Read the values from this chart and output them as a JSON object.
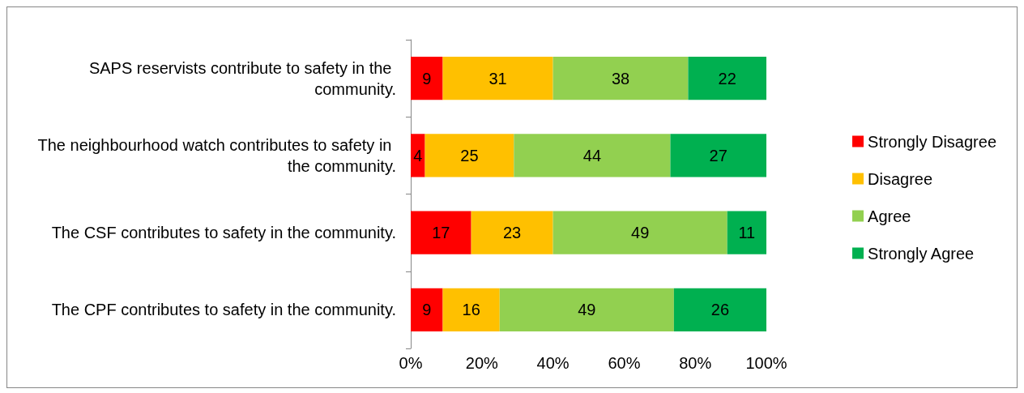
{
  "chart_data": {
    "type": "bar",
    "orientation": "horizontal",
    "stacked": true,
    "categories": [
      "SAPS reservists contribute to safety in the community.",
      "The neighbourhood watch contributes to safety in the community.",
      "The CSF contributes to safety in the community.",
      "The CPF contributes to safety in the community."
    ],
    "series": [
      {
        "name": "Strongly Disagree",
        "color": "#ff0000",
        "values": [
          9,
          4,
          17,
          9
        ]
      },
      {
        "name": "Disagree",
        "color": "#ffc000",
        "values": [
          31,
          25,
          23,
          16
        ]
      },
      {
        "name": "Agree",
        "color": "#92d050",
        "values": [
          38,
          44,
          49,
          49
        ]
      },
      {
        "name": "Strongly Agree",
        "color": "#00b050",
        "values": [
          22,
          27,
          11,
          26
        ]
      }
    ],
    "xlim": [
      0,
      100
    ],
    "xticks": [
      {
        "value": 0,
        "label": "0%"
      },
      {
        "value": 20,
        "label": "20%"
      },
      {
        "value": 40,
        "label": "40%"
      },
      {
        "value": 60,
        "label": "60%"
      },
      {
        "value": 80,
        "label": "80%"
      },
      {
        "value": 100,
        "label": "100%"
      }
    ],
    "data_labels": true,
    "grid": false,
    "legend": "right"
  }
}
